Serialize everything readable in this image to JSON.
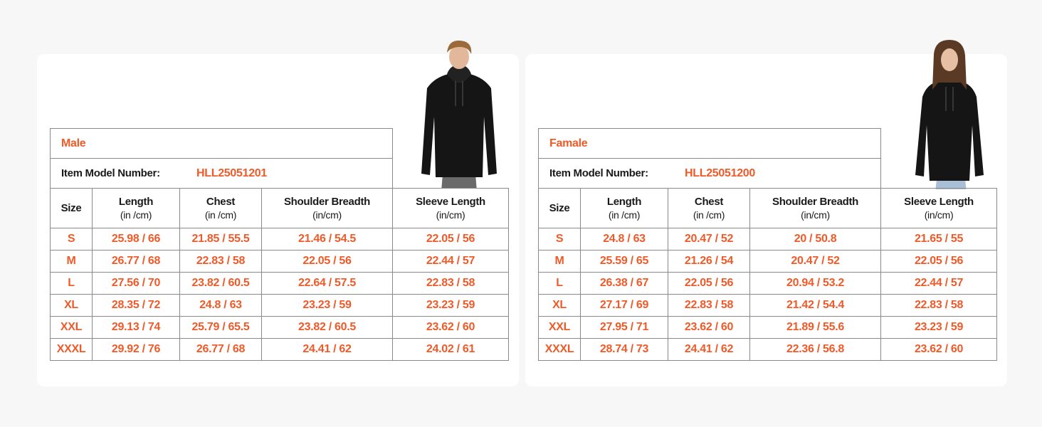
{
  "colors": {
    "accent": "#f05a28",
    "background": "#f7f7f7",
    "card": "#ffffff",
    "border": "#8a8a8a"
  },
  "columns": [
    {
      "name": "Size",
      "unit": ""
    },
    {
      "name": "Length",
      "unit": "(in /cm)"
    },
    {
      "name": "Chest",
      "unit": "(in /cm)"
    },
    {
      "name": "Shoulder Breadth",
      "unit": "(in/cm)"
    },
    {
      "name": "Sleeve Length",
      "unit": "(in/cm)"
    }
  ],
  "model_label": "Item Model Number:",
  "tables": [
    {
      "title": "Male",
      "model_number": "HLL25051201",
      "image": "male-model-black-hoodie",
      "rows": [
        [
          "S",
          "25.98 / 66",
          "21.85 / 55.5",
          "21.46 / 54.5",
          "22.05 / 56"
        ],
        [
          "M",
          "26.77 / 68",
          "22.83 / 58",
          "22.05 / 56",
          "22.44 / 57"
        ],
        [
          "L",
          "27.56 / 70",
          "23.82 / 60.5",
          "22.64 / 57.5",
          "22.83 / 58"
        ],
        [
          "XL",
          "28.35 / 72",
          "24.8 / 63",
          "23.23 / 59",
          "23.23 / 59"
        ],
        [
          "XXL",
          "29.13 / 74",
          "25.79 / 65.5",
          "23.82 / 60.5",
          "23.62 / 60"
        ],
        [
          "XXXL",
          "29.92 / 76",
          "26.77 / 68",
          "24.41 / 62",
          "24.02 / 61"
        ]
      ]
    },
    {
      "title": "Famale",
      "model_number": "HLL25051200",
      "image": "female-model-black-hoodie",
      "rows": [
        [
          "S",
          "24.8 / 63",
          "20.47 / 52",
          "20 / 50.8",
          "21.65 / 55"
        ],
        [
          "M",
          "25.59 / 65",
          "21.26 / 54",
          "20.47 / 52",
          "22.05 / 56"
        ],
        [
          "L",
          "26.38 / 67",
          "22.05 / 56",
          "20.94 / 53.2",
          "22.44 / 57"
        ],
        [
          "XL",
          "27.17 / 69",
          "22.83 / 58",
          "21.42 / 54.4",
          "22.83 / 58"
        ],
        [
          "XXL",
          "27.95 / 71",
          "23.62 / 60",
          "21.89 / 55.6",
          "23.23 / 59"
        ],
        [
          "XXXL",
          "28.74 / 73",
          "24.41 / 62",
          "22.36 / 56.8",
          "23.62 / 60"
        ]
      ]
    }
  ]
}
